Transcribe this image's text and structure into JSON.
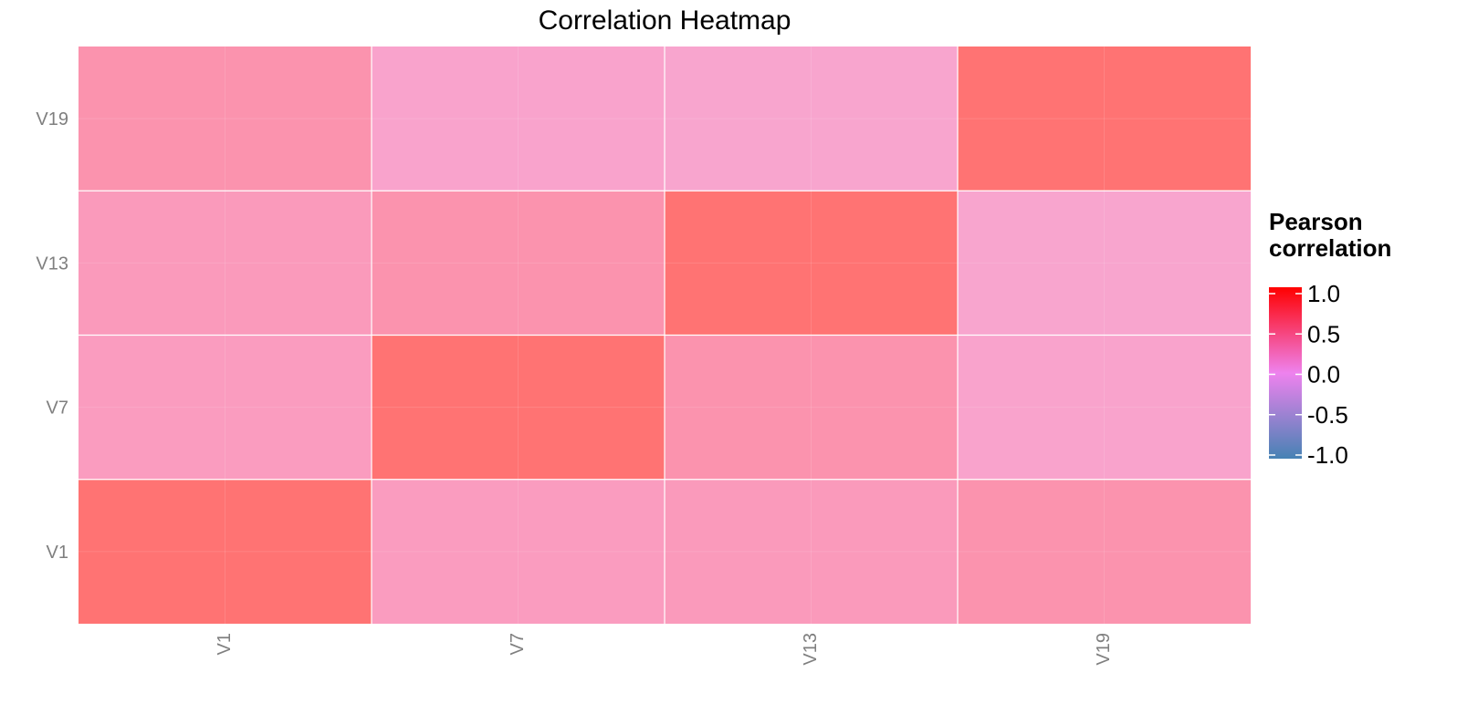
{
  "chart_data": {
    "type": "heatmap",
    "title": "Correlation Heatmap",
    "xlabel": "",
    "ylabel": "",
    "x_categories": [
      "V1",
      "V7",
      "V13",
      "V19"
    ],
    "y_categories": [
      "V1",
      "V7",
      "V13",
      "V19"
    ],
    "values": [
      [
        1.0,
        0.42,
        0.45,
        0.55
      ],
      [
        0.42,
        1.0,
        0.55,
        0.32
      ],
      [
        0.45,
        0.55,
        1.0,
        0.3
      ],
      [
        0.55,
        0.32,
        0.3,
        1.0
      ]
    ],
    "value_range": [
      -1.0,
      1.0
    ],
    "legend": {
      "title_line1": "Pearson",
      "title_line2": "correlation",
      "ticks": [
        "1.0",
        "0.5",
        "0.0",
        "-0.5",
        "-1.0"
      ],
      "tick_values": [
        1.0,
        0.5,
        0.0,
        -0.5,
        -1.0
      ],
      "placement": "right"
    },
    "color_scale": {
      "low": "#4682b4",
      "mid": "#ee82ee",
      "high": "#ff0000"
    },
    "tile_alpha": 0.55,
    "grid": true
  }
}
